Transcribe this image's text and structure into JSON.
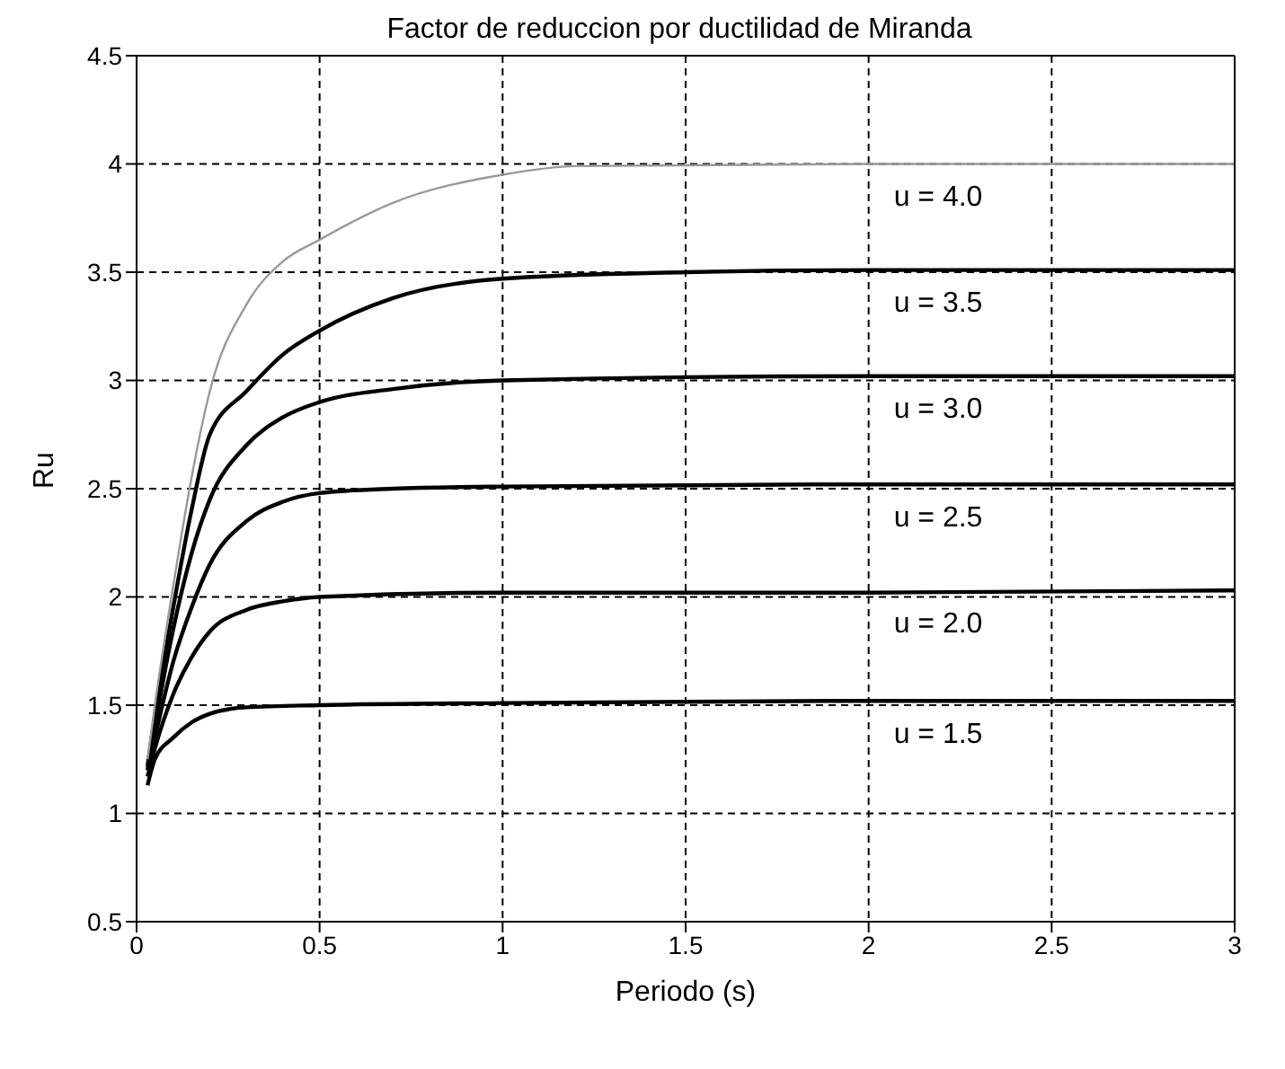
{
  "chart_data": {
    "type": "line",
    "title": "Factor de reduccion por ductilidad de Miranda",
    "xlabel": "Periodo (s)",
    "ylabel": "Ru",
    "xlim": [
      0,
      3
    ],
    "xticks": [
      0,
      0.5,
      1,
      1.5,
      2,
      2.5,
      3
    ],
    "ylim": [
      0.5,
      4.5
    ],
    "yticks": [
      0.5,
      1,
      1.5,
      2,
      2.5,
      3,
      3.5,
      4,
      4.5
    ],
    "grid": true,
    "legend": false,
    "marker": "none",
    "line_style": "solid",
    "series": [
      {
        "name": "u = 1.5",
        "color": "#000000",
        "x": [
          0.03,
          0.05,
          0.1,
          0.15,
          0.2,
          0.3,
          0.5,
          1,
          2,
          3
        ],
        "values": [
          1.13,
          1.25,
          1.35,
          1.42,
          1.46,
          1.49,
          1.5,
          1.51,
          1.52,
          1.52
        ]
      },
      {
        "name": "u = 2.0",
        "color": "#000000",
        "x": [
          0.03,
          0.05,
          0.1,
          0.15,
          0.2,
          0.3,
          0.4,
          0.5,
          1,
          2,
          3
        ],
        "values": [
          1.17,
          1.3,
          1.55,
          1.72,
          1.84,
          1.94,
          1.98,
          2.0,
          2.02,
          2.02,
          2.03
        ]
      },
      {
        "name": "u = 2.5",
        "color": "#000000",
        "x": [
          0.03,
          0.05,
          0.1,
          0.15,
          0.2,
          0.3,
          0.4,
          0.5,
          0.7,
          1,
          2,
          3
        ],
        "values": [
          1.2,
          1.35,
          1.7,
          1.95,
          2.15,
          2.35,
          2.44,
          2.48,
          2.5,
          2.51,
          2.52,
          2.52
        ]
      },
      {
        "name": "u = 3.0",
        "color": "#000000",
        "x": [
          0.03,
          0.05,
          0.1,
          0.15,
          0.2,
          0.3,
          0.4,
          0.5,
          0.7,
          1,
          2,
          3
        ],
        "values": [
          1.2,
          1.4,
          1.85,
          2.2,
          2.45,
          2.7,
          2.83,
          2.9,
          2.96,
          3.0,
          3.02,
          3.02
        ]
      },
      {
        "name": "u = 3.5",
        "color": "#000000",
        "x": [
          0.03,
          0.05,
          0.1,
          0.15,
          0.2,
          0.3,
          0.4,
          0.5,
          0.7,
          1,
          1.5,
          2,
          3
        ],
        "values": [
          1.22,
          1.45,
          1.95,
          2.4,
          2.75,
          2.95,
          3.12,
          3.23,
          3.38,
          3.47,
          3.5,
          3.51,
          3.51
        ]
      },
      {
        "name": "u = 4.0",
        "color": "#999999",
        "x": [
          0.03,
          0.05,
          0.1,
          0.15,
          0.2,
          0.3,
          0.4,
          0.5,
          0.7,
          1,
          1.2,
          2,
          3
        ],
        "values": [
          1.25,
          1.5,
          2.05,
          2.55,
          2.95,
          3.35,
          3.55,
          3.65,
          3.82,
          3.95,
          3.99,
          4.0,
          4.0
        ]
      }
    ]
  }
}
